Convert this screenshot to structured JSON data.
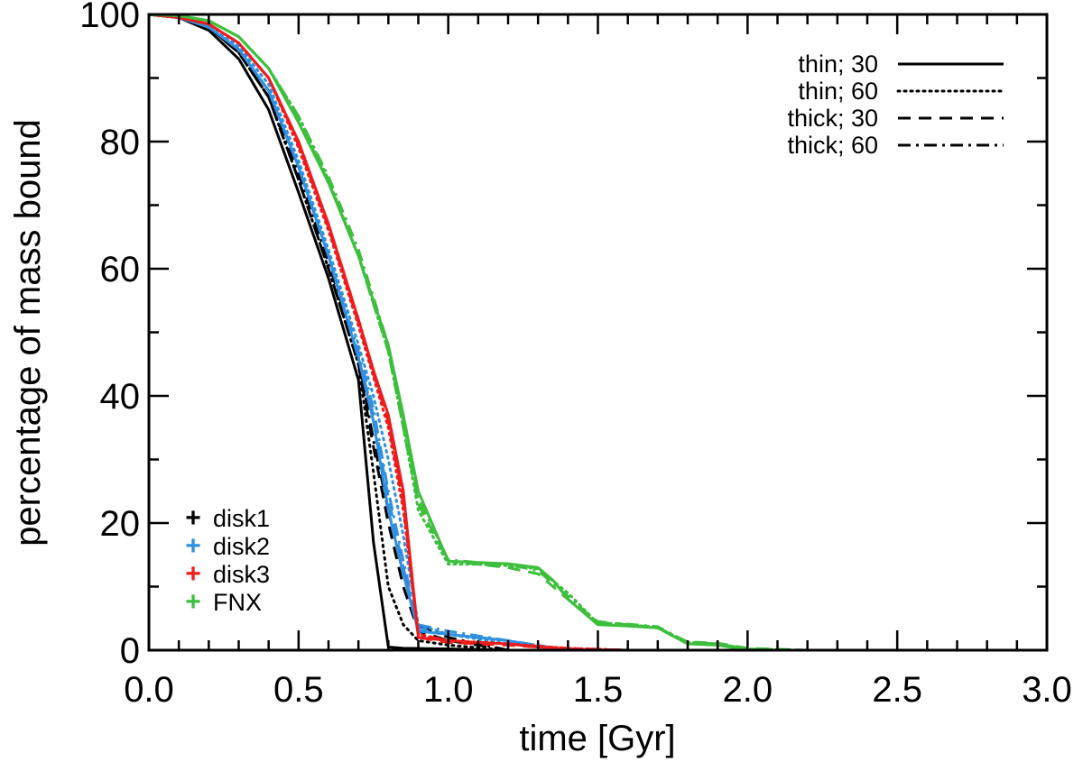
{
  "chart_data": {
    "type": "line",
    "title": "",
    "xlabel": "time [Gyr]",
    "ylabel": "percentage of mass bound",
    "xlim": [
      0,
      3
    ],
    "ylim": [
      0,
      100
    ],
    "x_ticks": [
      0,
      0.5,
      1,
      1.5,
      2,
      2.5,
      3
    ],
    "x_tick_labels": [
      "0.0",
      "0.5",
      "1.0",
      "1.5",
      "2.0",
      "2.5",
      "3.0"
    ],
    "y_ticks": [
      0,
      20,
      40,
      60,
      80,
      100
    ],
    "y_tick_labels": [
      "0",
      "20",
      "40",
      "60",
      "80",
      "100"
    ],
    "line_styles": [
      {
        "key": "solid",
        "label": "thin; 30"
      },
      {
        "key": "dotted",
        "label": "thin; 60"
      },
      {
        "key": "dashed",
        "label": "thick; 30"
      },
      {
        "key": "dashdot",
        "label": "thick; 60"
      }
    ],
    "models": [
      {
        "key": "disk1",
        "label": "disk1",
        "color": "#000000"
      },
      {
        "key": "disk2",
        "label": "disk2",
        "color": "#2f8fe0"
      },
      {
        "key": "disk3",
        "label": "disk3",
        "color": "#ee1c1c"
      },
      {
        "key": "fnx",
        "label": "FNX",
        "color": "#3dbf3d"
      }
    ],
    "series": [
      {
        "name": "disk1 thin; 30",
        "model": "disk1",
        "style": "solid",
        "x": [
          0,
          0.1,
          0.2,
          0.3,
          0.4,
          0.5,
          0.6,
          0.7,
          0.75,
          0.8,
          0.85,
          1.0,
          1.2
        ],
        "y": [
          100,
          99.5,
          97.5,
          93,
          85,
          72,
          58.5,
          42.5,
          17,
          0.5,
          0.3,
          0.2,
          0
        ]
      },
      {
        "name": "disk1 thin; 60",
        "model": "disk1",
        "style": "dotted",
        "x": [
          0,
          0.1,
          0.2,
          0.3,
          0.4,
          0.5,
          0.6,
          0.7,
          0.75,
          0.8,
          0.85,
          0.9,
          1.0,
          1.1,
          1.2
        ],
        "y": [
          100,
          99.5,
          98,
          94,
          87,
          74,
          60,
          45,
          28,
          10,
          4,
          1.5,
          0.8,
          0.4,
          0
        ]
      },
      {
        "name": "disk1 thick; 30",
        "model": "disk1",
        "style": "dashed",
        "x": [
          0,
          0.1,
          0.2,
          0.3,
          0.4,
          0.5,
          0.6,
          0.7,
          0.75,
          0.8,
          0.85,
          0.9,
          1.0,
          1.1,
          1.2
        ],
        "y": [
          100,
          99.5,
          98,
          94,
          87,
          74,
          60,
          45,
          32,
          20,
          10,
          3,
          1.5,
          0.8,
          0
        ]
      },
      {
        "name": "disk1 thick; 60",
        "model": "disk1",
        "style": "dashdot",
        "x": [
          0,
          0.1,
          0.2,
          0.3,
          0.4,
          0.5,
          0.6,
          0.7,
          0.75,
          0.8,
          0.85,
          0.9,
          1.0,
          1.1,
          1.2
        ],
        "y": [
          100,
          99.5,
          98,
          94,
          87,
          75,
          61,
          46,
          33,
          22,
          12,
          4,
          2,
          1,
          0
        ]
      },
      {
        "name": "disk2 thin; 30",
        "model": "disk2",
        "style": "solid",
        "x": [
          0,
          0.1,
          0.2,
          0.3,
          0.4,
          0.5,
          0.6,
          0.7,
          0.75,
          0.8,
          0.85,
          0.9,
          1.0,
          1.1,
          1.2,
          1.3,
          1.4
        ],
        "y": [
          100,
          99.5,
          98,
          94.5,
          88,
          76,
          62,
          46,
          36,
          22,
          12,
          3,
          2.5,
          2,
          1.5,
          0.5,
          0
        ]
      },
      {
        "name": "disk2 thin; 60",
        "model": "disk2",
        "style": "dotted",
        "x": [
          0,
          0.1,
          0.2,
          0.3,
          0.4,
          0.5,
          0.6,
          0.7,
          0.75,
          0.8,
          0.85,
          0.9,
          1.0,
          1.2,
          1.4
        ],
        "y": [
          100,
          99.5,
          98,
          95,
          89,
          77,
          63,
          48,
          40,
          30,
          18,
          4,
          2.5,
          1,
          0
        ]
      },
      {
        "name": "disk2 thick; 30",
        "model": "disk2",
        "style": "dashed",
        "x": [
          0,
          0.1,
          0.2,
          0.3,
          0.4,
          0.5,
          0.6,
          0.7,
          0.75,
          0.8,
          0.85,
          0.9,
          1.0,
          1.2,
          1.4
        ],
        "y": [
          100,
          99.5,
          98,
          94.5,
          88,
          76,
          62,
          46,
          37,
          24,
          13,
          3.5,
          2.5,
          1.5,
          0
        ]
      },
      {
        "name": "disk2 thick; 60",
        "model": "disk2",
        "style": "dashdot",
        "x": [
          0,
          0.1,
          0.2,
          0.3,
          0.4,
          0.5,
          0.6,
          0.7,
          0.75,
          0.8,
          0.85,
          0.9,
          1.0,
          1.2,
          1.4
        ],
        "y": [
          100,
          99.5,
          98,
          94.5,
          88,
          76,
          62,
          47,
          38,
          25,
          14,
          4,
          3,
          1.5,
          0
        ]
      },
      {
        "name": "disk3 thin; 30",
        "model": "disk3",
        "style": "solid",
        "x": [
          0,
          0.1,
          0.2,
          0.3,
          0.4,
          0.5,
          0.6,
          0.7,
          0.75,
          0.8,
          0.85,
          0.9,
          1.0,
          1.1,
          1.2,
          1.3,
          1.4,
          1.5,
          1.6
        ],
        "y": [
          100,
          99.5,
          98.5,
          95.5,
          90,
          80,
          67,
          52,
          44,
          37,
          25,
          2,
          1.5,
          1.2,
          1,
          0.5,
          0.2,
          0,
          0
        ]
      },
      {
        "name": "disk3 thin; 60",
        "model": "disk3",
        "style": "dotted",
        "x": [
          0,
          0.1,
          0.2,
          0.3,
          0.4,
          0.5,
          0.6,
          0.7,
          0.75,
          0.8,
          0.85,
          0.9,
          1.0,
          1.2,
          1.4,
          1.6
        ],
        "y": [
          100,
          99.5,
          98.5,
          95.5,
          90,
          79,
          66,
          51,
          43,
          35,
          22,
          2.5,
          1.5,
          1,
          0.3,
          0
        ]
      },
      {
        "name": "disk3 thick; 30",
        "model": "disk3",
        "style": "dashed",
        "x": [
          0,
          0.1,
          0.2,
          0.3,
          0.4,
          0.5,
          0.6,
          0.7,
          0.75,
          0.8,
          0.85,
          0.9,
          1.0,
          1.2,
          1.4,
          1.6
        ],
        "y": [
          100,
          99.5,
          98.5,
          95.5,
          90,
          79.5,
          66.5,
          51.5,
          43.5,
          36,
          23,
          2,
          1.2,
          0.8,
          0.2,
          0
        ]
      },
      {
        "name": "disk3 thick; 60",
        "model": "disk3",
        "style": "dashdot",
        "x": [
          0,
          0.1,
          0.2,
          0.3,
          0.4,
          0.5,
          0.6,
          0.7,
          0.75,
          0.8,
          0.85,
          0.9,
          1.0,
          1.2,
          1.4,
          1.6
        ],
        "y": [
          100,
          99.5,
          98.5,
          95.5,
          90,
          80,
          67,
          52,
          44,
          36.5,
          24,
          2.5,
          1.5,
          1,
          0.3,
          0
        ]
      },
      {
        "name": "FNX thin; 30",
        "model": "fnx",
        "style": "solid",
        "x": [
          0,
          0.1,
          0.2,
          0.3,
          0.4,
          0.5,
          0.6,
          0.7,
          0.8,
          0.85,
          0.9,
          1.0,
          1.1,
          1.2,
          1.3,
          1.35,
          1.4,
          1.5,
          1.6,
          1.7,
          1.8,
          1.9,
          2.0,
          2.2
        ],
        "y": [
          100,
          99.8,
          99,
          96.5,
          91.5,
          83,
          73.5,
          62,
          48,
          37,
          25,
          14,
          13.8,
          13.6,
          13,
          11,
          8,
          4,
          3.8,
          3.5,
          1,
          0.8,
          0,
          0
        ]
      },
      {
        "name": "FNX thin; 60",
        "model": "fnx",
        "style": "dotted",
        "x": [
          0,
          0.1,
          0.2,
          0.3,
          0.4,
          0.5,
          0.6,
          0.7,
          0.8,
          0.85,
          0.9,
          1.0,
          1.1,
          1.2,
          1.3,
          1.4,
          1.5,
          1.6,
          1.7,
          1.8,
          1.9,
          2.0,
          2.2
        ],
        "y": [
          100,
          99.8,
          99,
          96.5,
          91.5,
          84,
          74,
          62,
          47,
          35,
          22,
          13.5,
          13.5,
          13.3,
          12.8,
          9,
          4.2,
          4,
          3.6,
          1.2,
          1,
          0.2,
          0
        ]
      },
      {
        "name": "FNX thick; 30",
        "model": "fnx",
        "style": "dashed",
        "x": [
          0,
          0.1,
          0.2,
          0.3,
          0.4,
          0.5,
          0.6,
          0.7,
          0.8,
          0.85,
          0.9,
          1.0,
          1.1,
          1.2,
          1.3,
          1.4,
          1.5,
          1.6,
          1.7,
          1.8,
          1.9,
          2.0,
          2.2
        ],
        "y": [
          100,
          99.8,
          99,
          96.5,
          91.5,
          83.5,
          73.5,
          62,
          47,
          35,
          23,
          14,
          13.5,
          13,
          12,
          8,
          4.5,
          4,
          3.5,
          1.3,
          1.1,
          0.3,
          0
        ]
      },
      {
        "name": "FNX thick; 60",
        "model": "fnx",
        "style": "dashdot",
        "x": [
          0,
          0.1,
          0.2,
          0.3,
          0.4,
          0.5,
          0.6,
          0.7,
          0.8,
          0.85,
          0.9,
          1.0,
          1.1,
          1.2,
          1.3,
          1.4,
          1.5,
          1.6,
          1.7,
          1.8,
          1.9,
          2.0,
          2.2
        ],
        "y": [
          100,
          99.8,
          99,
          96.5,
          91.5,
          84,
          74.5,
          63,
          48,
          36,
          24,
          14.2,
          13.8,
          13.5,
          12.5,
          8.5,
          4.3,
          4.1,
          3.7,
          1.2,
          1,
          0.2,
          0
        ]
      }
    ]
  }
}
